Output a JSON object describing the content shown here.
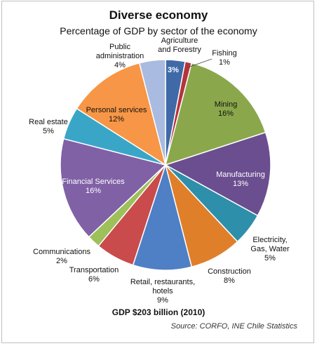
{
  "chart_data": {
    "type": "pie",
    "title": "Diverse economy",
    "subtitle": "Percentage of GDP by sector of the economy",
    "footnote": "GDP $203 billion (2010)",
    "source": "Source: CORFO, INE Chile Statistics",
    "slices": [
      {
        "name": "Agriculture and Forestry",
        "value": 3,
        "pct_label": "3%",
        "color": "#3f6aa7"
      },
      {
        "name": "Fishing",
        "value": 1,
        "pct_label": "1%",
        "color": "#b5343c"
      },
      {
        "name": "Mining",
        "value": 16,
        "pct_label": "16%",
        "color": "#8aa84b"
      },
      {
        "name": "Manufacturing",
        "value": 13,
        "pct_label": "13%",
        "color": "#6b4e8f"
      },
      {
        "name": "Electricity, Gas, Water",
        "value": 5,
        "pct_label": "5%",
        "color": "#2d8faa"
      },
      {
        "name": "Construction",
        "value": 8,
        "pct_label": "8%",
        "color": "#e07f2a"
      },
      {
        "name": "Retail, restaurants, hotels",
        "value": 9,
        "pct_label": "9%",
        "color": "#4f7fc5"
      },
      {
        "name": "Transportation",
        "value": 6,
        "pct_label": "6%",
        "color": "#c94b4b"
      },
      {
        "name": "Communications",
        "value": 2,
        "pct_label": "2%",
        "color": "#9dc05a"
      },
      {
        "name": "Financial Services",
        "value": 16,
        "pct_label": "16%",
        "color": "#8061a6"
      },
      {
        "name": "Real estate",
        "value": 5,
        "pct_label": "5%",
        "color": "#3aa6c7"
      },
      {
        "name": "Personal services",
        "value": 12,
        "pct_label": "12%",
        "color": "#f79646"
      },
      {
        "name": "Public administration",
        "value": 4,
        "pct_label": "4%",
        "color": "#a9bbe0"
      }
    ]
  }
}
